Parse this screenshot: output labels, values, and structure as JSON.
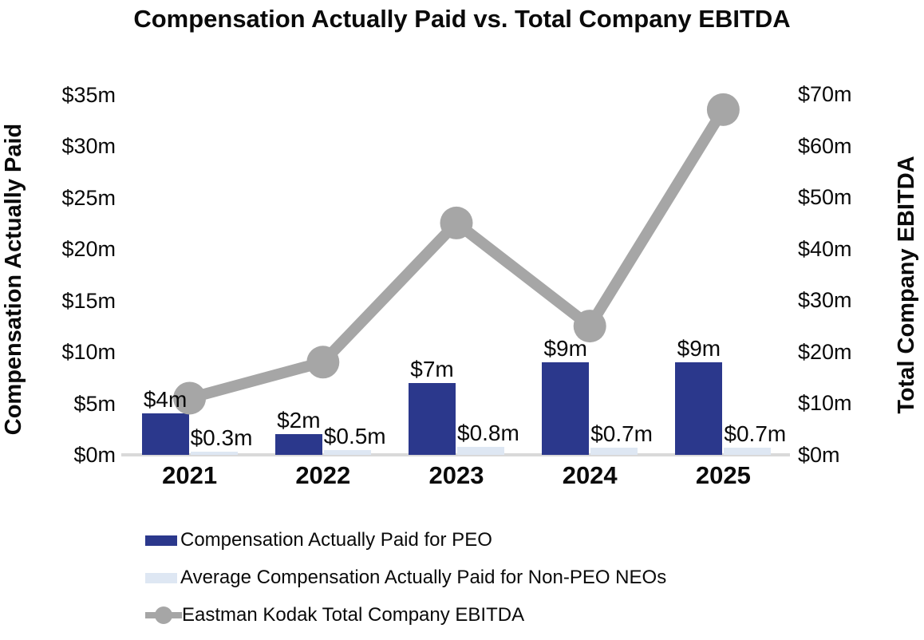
{
  "title": "Compensation Actually Paid vs. Total Company EBITDA",
  "chart_data": {
    "type": "combo-bar-line",
    "title": "Compensation Actually Paid vs. Total Company EBITDA",
    "categories": [
      "2021",
      "2022",
      "2023",
      "2024",
      "2025"
    ],
    "series": [
      {
        "name": "Compensation Actually Paid for PEO",
        "type": "bar",
        "axis": "left",
        "color": "#2b388c",
        "values": [
          4,
          2,
          7,
          9,
          9
        ],
        "labels": [
          "$4m",
          "$2m",
          "$7m",
          "$9m",
          "$9m"
        ]
      },
      {
        "name": "Average Compensation Actually Paid for Non-PEO NEOs",
        "type": "bar",
        "axis": "left",
        "color": "#dee7f3",
        "values": [
          0.3,
          0.5,
          0.8,
          0.7,
          0.7
        ],
        "labels": [
          "$0.3m",
          "$0.5m",
          "$0.8m",
          "$0.7m",
          "$0.7m"
        ]
      },
      {
        "name": "Eastman Kodak Total Company EBITDA",
        "type": "line",
        "axis": "right",
        "color": "#a6a6a6",
        "values": [
          11,
          18,
          45,
          25,
          67
        ]
      }
    ],
    "left_axis": {
      "label": "Compensation Actually Paid",
      "min": 0,
      "max": 35,
      "ticks": [
        "$0m",
        "$5m",
        "$10m",
        "$15m",
        "$20m",
        "$25m",
        "$30m",
        "$35m"
      ]
    },
    "right_axis": {
      "label": "Total Company EBITDA",
      "min": 0,
      "max": 70,
      "ticks": [
        "$0m",
        "$10m",
        "$20m",
        "$30m",
        "$40m",
        "$50m",
        "$60m",
        "$70m"
      ]
    },
    "legend_position": "bottom-left",
    "grid": false,
    "axis_line_color": "#d9d9d9",
    "text_color": "#0a0a0a"
  }
}
